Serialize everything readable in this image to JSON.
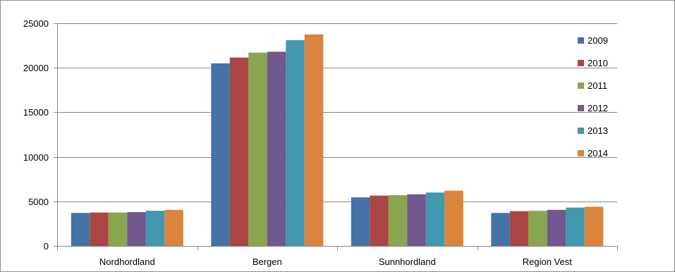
{
  "chart_data": {
    "type": "bar",
    "title": "",
    "xlabel": "",
    "ylabel": "",
    "categories": [
      "Nordhordland",
      "Bergen",
      "Sunnhordland",
      "Region Vest"
    ],
    "ylim": [
      0,
      25000
    ],
    "yticks": [
      0,
      5000,
      10000,
      15000,
      20000,
      25000
    ],
    "grid": true,
    "legend_position": "right",
    "series": [
      {
        "name": "2009",
        "color": "#4572A7",
        "values": [
          3700,
          20500,
          5450,
          3700
        ]
      },
      {
        "name": "2010",
        "color": "#AA4643",
        "values": [
          3750,
          21150,
          5650,
          3900
        ]
      },
      {
        "name": "2011",
        "color": "#89A54E",
        "values": [
          3750,
          21700,
          5700,
          3950
        ]
      },
      {
        "name": "2012",
        "color": "#71588F",
        "values": [
          3800,
          21800,
          5800,
          4050
        ]
      },
      {
        "name": "2013",
        "color": "#4198AF",
        "values": [
          3950,
          23100,
          6000,
          4300
        ]
      },
      {
        "name": "2014",
        "color": "#DB843D",
        "values": [
          4050,
          23750,
          6200,
          4400
        ]
      }
    ]
  }
}
